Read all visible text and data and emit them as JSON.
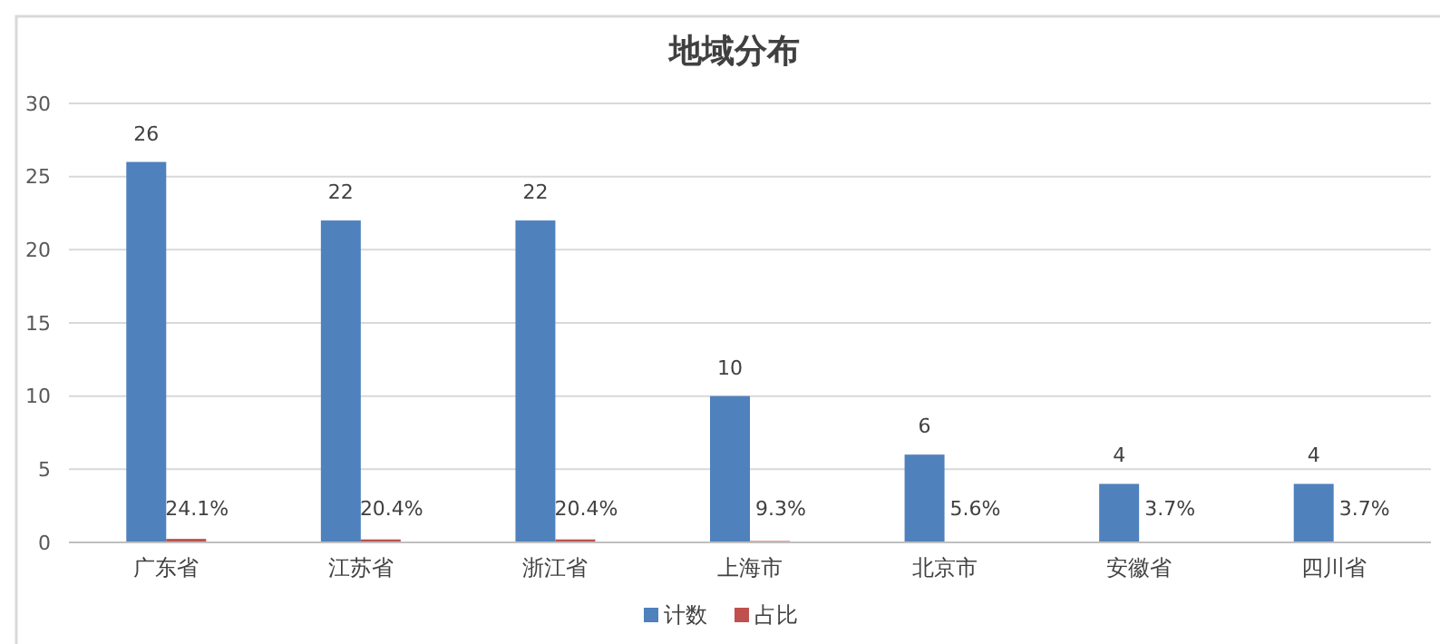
{
  "chart_data": {
    "type": "bar",
    "title": "地域分布",
    "categories": [
      "广东省",
      "江苏省",
      "浙江省",
      "上海市",
      "北京市",
      "安徽省",
      "四川省"
    ],
    "series": [
      {
        "name": "计数",
        "color": "#4f81bd",
        "values": [
          26,
          22,
          22,
          10,
          6,
          4,
          4
        ],
        "value_labels": [
          "26",
          "22",
          "22",
          "10",
          "6",
          "4",
          "4"
        ]
      },
      {
        "name": "占比",
        "color": "#c0504d",
        "values": [
          0.241,
          0.204,
          0.204,
          0.093,
          0.056,
          0.037,
          0.037
        ],
        "value_labels": [
          "24.1%",
          "20.4%",
          "20.4%",
          "9.3%",
          "5.6%",
          "3.7%",
          "3.7%"
        ]
      }
    ],
    "ylim": [
      0,
      30
    ],
    "yticks": [
      0,
      5,
      10,
      15,
      20,
      25,
      30
    ],
    "grid": "y",
    "legend": "bottom"
  }
}
